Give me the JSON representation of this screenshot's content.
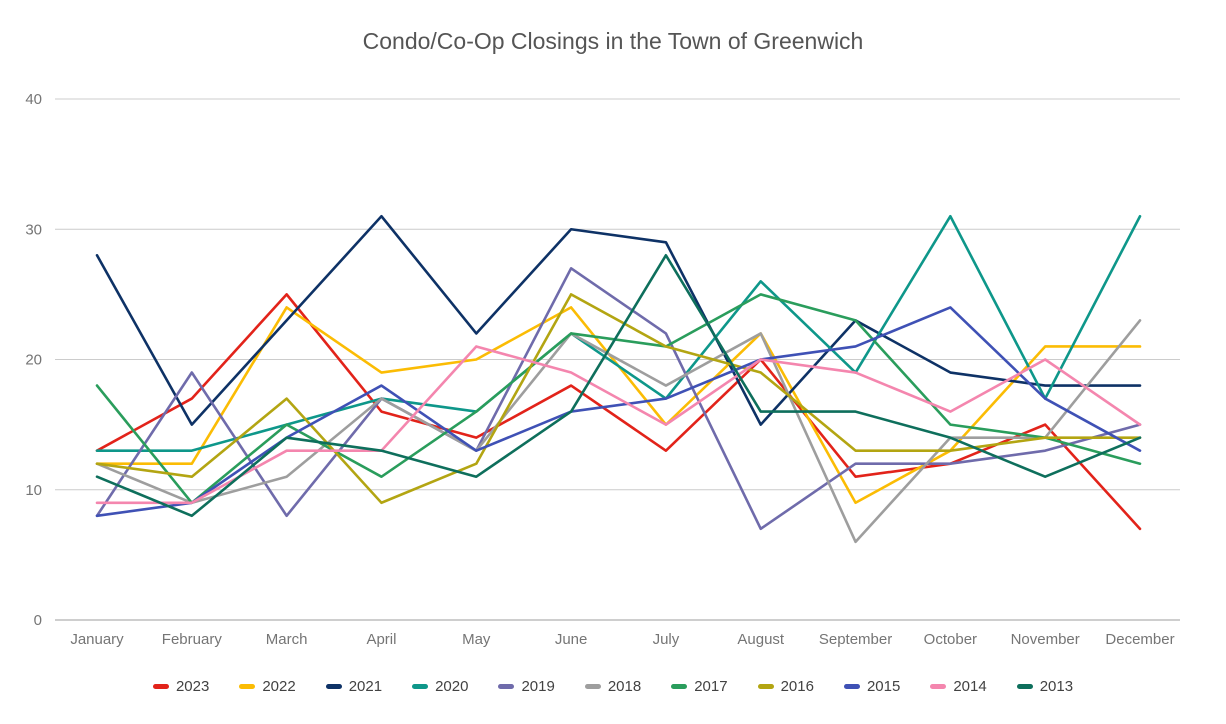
{
  "chart_data": {
    "type": "line",
    "title": "Condo/Co-Op Closings in the Town of Greenwich",
    "xlabel": "",
    "ylabel": "",
    "ylim": [
      0,
      40
    ],
    "y_ticks": [
      0,
      10,
      20,
      30,
      40
    ],
    "grid": true,
    "legend_position": "bottom",
    "categories": [
      "January",
      "February",
      "March",
      "April",
      "May",
      "June",
      "July",
      "August",
      "September",
      "October",
      "November",
      "December"
    ],
    "series": [
      {
        "name": "2023",
        "color": "#e2231a",
        "values": [
          13,
          17,
          25,
          16,
          14,
          18,
          13,
          20,
          11,
          12,
          15,
          7
        ]
      },
      {
        "name": "2022",
        "color": "#fbbc04",
        "values": [
          12,
          12,
          24,
          19,
          20,
          24,
          15,
          22,
          9,
          13,
          21,
          21
        ]
      },
      {
        "name": "2021",
        "color": "#0e3266",
        "values": [
          28,
          15,
          23,
          31,
          22,
          30,
          29,
          15,
          23,
          19,
          18,
          18
        ]
      },
      {
        "name": "2020",
        "color": "#0e978a",
        "values": [
          13,
          13,
          15,
          17,
          16,
          22,
          17,
          26,
          19,
          31,
          17,
          31
        ]
      },
      {
        "name": "2019",
        "color": "#6f6bab",
        "values": [
          8,
          19,
          8,
          17,
          13,
          27,
          22,
          7,
          12,
          12,
          13,
          15
        ]
      },
      {
        "name": "2018",
        "color": "#9e9e9e",
        "values": [
          12,
          9,
          11,
          17,
          13,
          22,
          18,
          22,
          6,
          14,
          14,
          23
        ]
      },
      {
        "name": "2017",
        "color": "#2a9d5c",
        "values": [
          18,
          9,
          15,
          11,
          16,
          22,
          21,
          25,
          23,
          15,
          14,
          12
        ]
      },
      {
        "name": "2016",
        "color": "#b3a512",
        "values": [
          12,
          11,
          17,
          9,
          12,
          25,
          21,
          19,
          13,
          13,
          14,
          14
        ]
      },
      {
        "name": "2015",
        "color": "#3f51b5",
        "values": [
          8,
          9,
          14,
          18,
          13,
          16,
          17,
          20,
          21,
          24,
          17,
          13
        ]
      },
      {
        "name": "2014",
        "color": "#f486ae",
        "values": [
          9,
          9,
          13,
          13,
          21,
          19,
          15,
          20,
          19,
          16,
          20,
          15
        ]
      },
      {
        "name": "2013",
        "color": "#0e6f5c",
        "values": [
          11,
          8,
          14,
          13,
          11,
          16,
          28,
          16,
          16,
          14,
          11,
          14
        ]
      }
    ],
    "axis_colors": {
      "tick_label": "#757575",
      "gridline": "#cccccc",
      "baseline": "#9e9e9e"
    }
  }
}
